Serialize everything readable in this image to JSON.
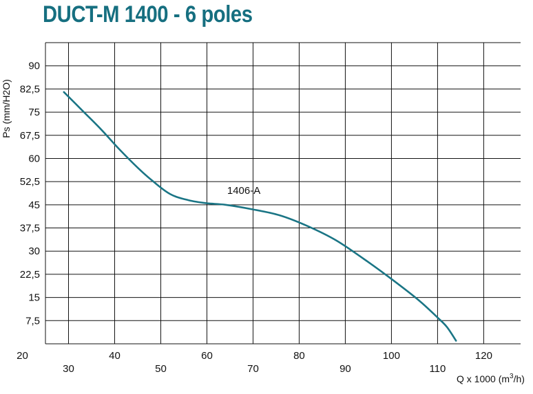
{
  "chart_data": {
    "type": "line",
    "title": "DUCT-M 1400 - 6 poles",
    "ylabel": "Ps (mm/H2O)",
    "xlabel_prefix": "Q x 1000 (m",
    "xlabel_sup": "3",
    "xlabel_suffix": "/h)",
    "ylim": [
      0,
      97.5
    ],
    "xlim": [
      25,
      128
    ],
    "grid": true,
    "y_ticks": [
      "90",
      "82,5",
      "75",
      "67,5",
      "60",
      "52,5",
      "45",
      "37,5",
      "30",
      "22,5",
      "15",
      "7,5"
    ],
    "y_tick_values": [
      90,
      82.5,
      75,
      67.5,
      60,
      52.5,
      45,
      37.5,
      30,
      22.5,
      15,
      7.5
    ],
    "x_ticks_upper": [
      "20",
      "40",
      "60",
      "80",
      "100",
      "120"
    ],
    "x_ticks_upper_values": [
      20,
      40,
      60,
      80,
      100,
      120
    ],
    "x_ticks_lower": [
      "30",
      "50",
      "70",
      "90",
      "110"
    ],
    "x_ticks_lower_values": [
      30,
      50,
      70,
      90,
      110
    ],
    "x_gridlines": [
      30,
      40,
      50,
      60,
      70,
      80,
      90,
      100,
      110,
      120
    ],
    "series": [
      {
        "name": "1406-A",
        "color": "#1a7585",
        "x": [
          29,
          33,
          37,
          41,
          45,
          48,
          52,
          56,
          60,
          64,
          70,
          76,
          82,
          88,
          94,
          100,
          106,
          110,
          112,
          114
        ],
        "y": [
          81.5,
          75.5,
          69.5,
          63,
          57,
          53,
          48.5,
          46.5,
          45.5,
          45,
          43.5,
          41.5,
          38,
          33.5,
          27.5,
          21,
          14,
          8.5,
          5.5,
          1
        ]
      }
    ],
    "annotations": [
      {
        "text": "1406-A",
        "x": 68,
        "y": 48.5
      }
    ]
  }
}
